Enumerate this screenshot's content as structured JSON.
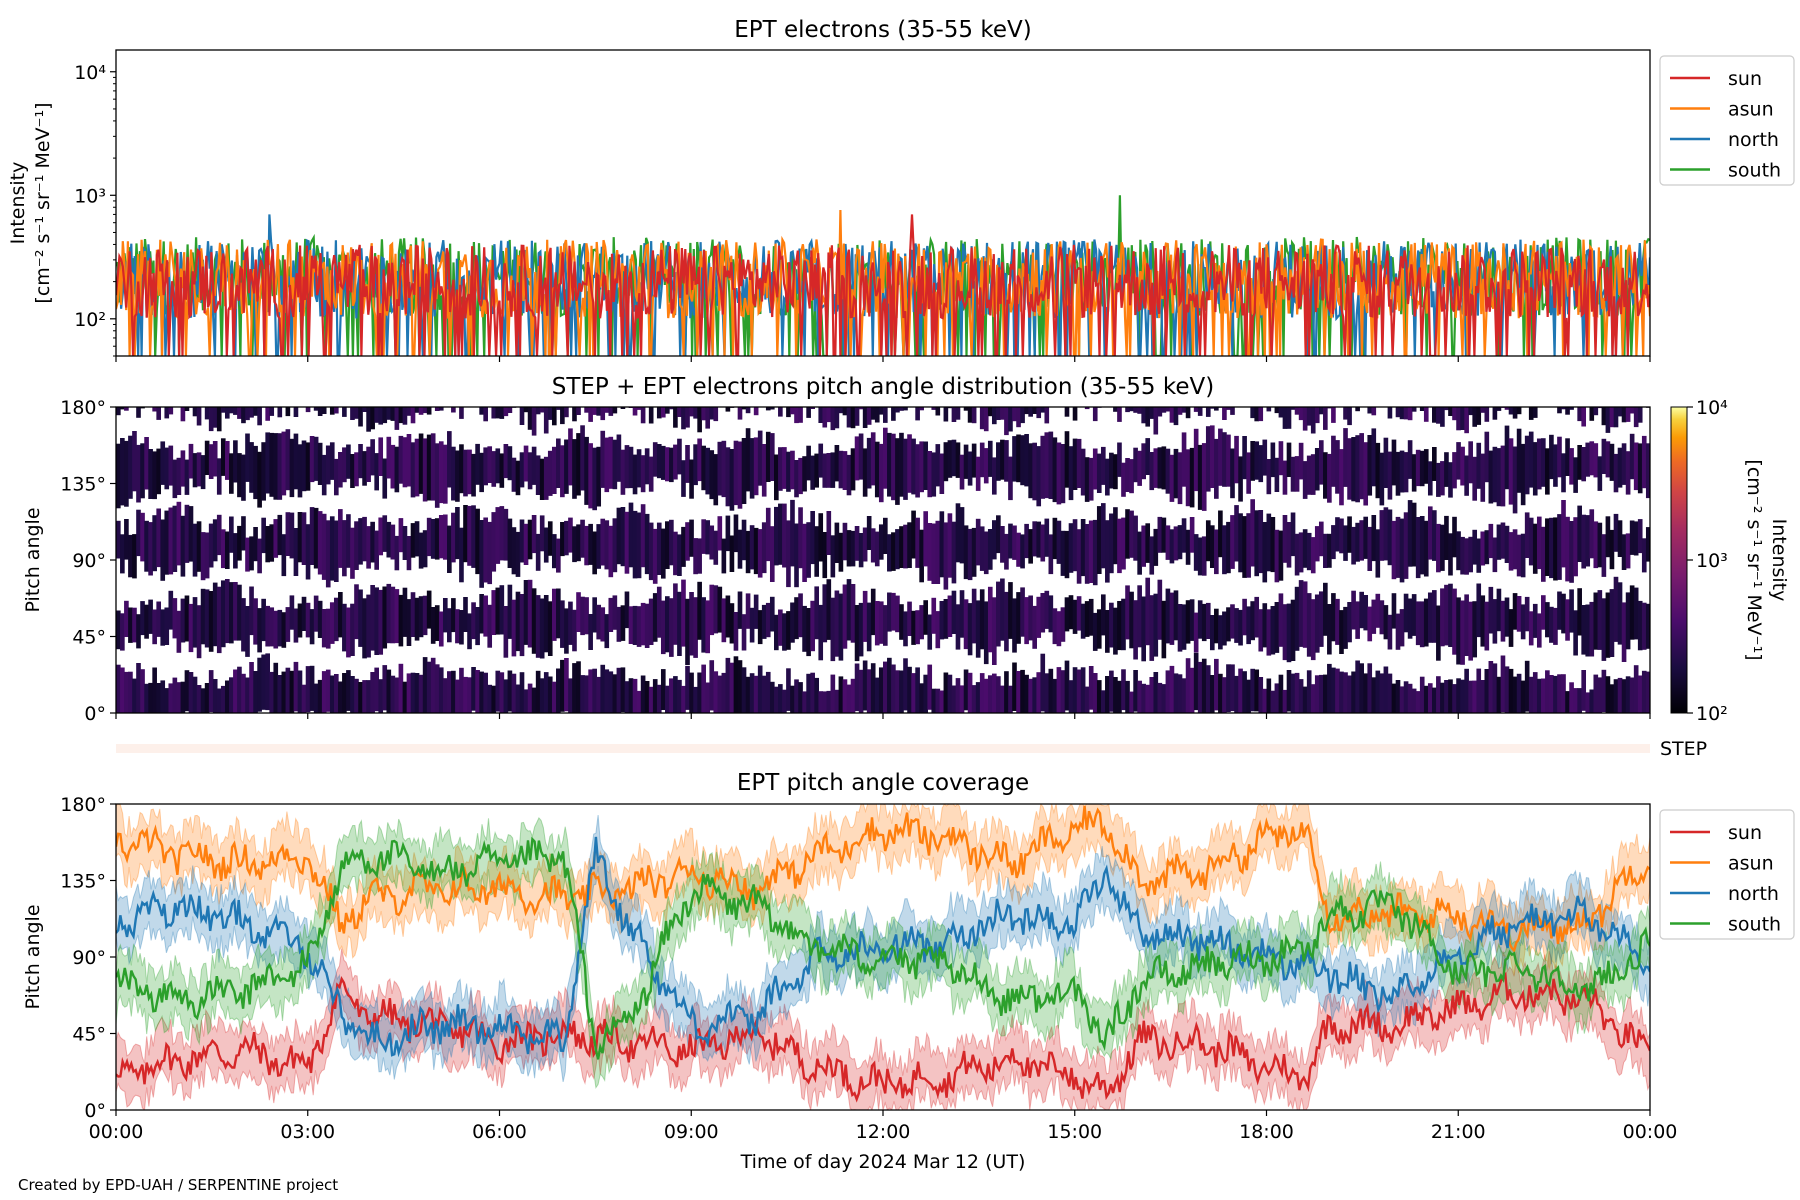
{
  "chart_data": [
    {
      "type": "line",
      "title": "EPT electrons (35-55 keV)",
      "ylabel_line1": "Intensity",
      "ylabel_line2": "[cm⁻² s⁻¹ sr⁻¹ MeV⁻¹]",
      "yscale": "log",
      "ylim": [
        50,
        15000
      ],
      "yticks": [
        {
          "value": 100,
          "label": "10²"
        },
        {
          "value": 1000,
          "label": "10³"
        },
        {
          "value": 10000,
          "label": "10⁴"
        }
      ],
      "x_hours_range": [
        0,
        24
      ],
      "legend_position": "outside-right-top",
      "series": [
        {
          "name": "south",
          "color": "#2ca02c",
          "typical": 220,
          "spread": 0.32,
          "max": 1000,
          "min": 50
        },
        {
          "name": "north",
          "color": "#1f77b4",
          "typical": 210,
          "spread": 0.32,
          "max": 700,
          "min": 50
        },
        {
          "name": "asun",
          "color": "#ff7f0e",
          "typical": 210,
          "spread": 0.32,
          "max": 760,
          "min": 50
        },
        {
          "name": "sun",
          "color": "#d62728",
          "typical": 200,
          "spread": 0.3,
          "max": 700,
          "min": 50
        }
      ],
      "legend_order": [
        "sun",
        "asun",
        "north",
        "south"
      ]
    },
    {
      "type": "heatmap",
      "title": "STEP + EPT electrons pitch angle distribution (35-55 keV)",
      "ylabel": "Pitch angle",
      "ylim": [
        0,
        180
      ],
      "yticks": [
        {
          "value": 0,
          "label": "0°"
        },
        {
          "value": 45,
          "label": "45°"
        },
        {
          "value": 90,
          "label": "90°"
        },
        {
          "value": 135,
          "label": "135°"
        },
        {
          "value": 180,
          "label": "180°"
        }
      ],
      "colorscale": "inferno",
      "zscale": "log",
      "zlim": [
        100,
        10000
      ],
      "colorbar": {
        "label_line1": "Intensity",
        "label_line2": "[cm⁻² s⁻¹ sr⁻¹ MeV⁻¹]",
        "ticks": [
          {
            "value": 100,
            "label": "10²"
          },
          {
            "value": 1000,
            "label": "10³"
          },
          {
            "value": 10000,
            "label": "10⁴"
          }
        ]
      },
      "typical_intensity": 230,
      "step_label": "STEP"
    },
    {
      "type": "line",
      "title": "EPT pitch angle coverage",
      "ylabel": "Pitch angle",
      "xlabel": "Time of day 2024 Mar 12 (UT)",
      "ylim": [
        0,
        180
      ],
      "yticks": [
        {
          "value": 0,
          "label": "0°"
        },
        {
          "value": 45,
          "label": "45°"
        },
        {
          "value": 90,
          "label": "90°"
        },
        {
          "value": 135,
          "label": "135°"
        },
        {
          "value": 180,
          "label": "180°"
        }
      ],
      "xticks": [
        {
          "hour": 0,
          "label": "00:00"
        },
        {
          "hour": 3,
          "label": "03:00"
        },
        {
          "hour": 6,
          "label": "06:00"
        },
        {
          "hour": 9,
          "label": "09:00"
        },
        {
          "hour": 12,
          "label": "12:00"
        },
        {
          "hour": 15,
          "label": "15:00"
        },
        {
          "hour": 18,
          "label": "18:00"
        },
        {
          "hour": 21,
          "label": "21:00"
        },
        {
          "hour": 24,
          "label": "00:00"
        }
      ],
      "band_halfwidth_deg": 15,
      "legend_position": "outside-right-top",
      "series": [
        {
          "name": "sun",
          "color": "#d62728",
          "x": [
            0,
            1,
            2,
            3,
            3.5,
            4,
            5,
            6,
            7,
            8,
            9,
            10,
            11,
            12,
            13,
            14,
            15,
            15.5,
            16,
            17,
            18,
            18.6,
            19,
            20,
            21,
            22,
            23,
            24
          ],
          "y": [
            20,
            30,
            35,
            25,
            70,
            55,
            50,
            40,
            45,
            40,
            35,
            45,
            25,
            15,
            20,
            30,
            20,
            10,
            40,
            40,
            25,
            20,
            50,
            50,
            60,
            70,
            65,
            30
          ]
        },
        {
          "name": "asun",
          "color": "#ff7f0e",
          "x": [
            0,
            1,
            2,
            3,
            3.5,
            4,
            5,
            6,
            7,
            8,
            9,
            10,
            11,
            12,
            13,
            14,
            15,
            15.5,
            16,
            17,
            18,
            18.6,
            19,
            20,
            21,
            22,
            23,
            24
          ],
          "y": [
            160,
            150,
            145,
            150,
            110,
            125,
            130,
            130,
            125,
            130,
            140,
            130,
            150,
            165,
            160,
            145,
            165,
            170,
            135,
            140,
            160,
            165,
            115,
            115,
            115,
            105,
            110,
            150
          ]
        },
        {
          "name": "north",
          "color": "#1f77b4",
          "x": [
            0,
            1,
            2,
            3,
            3.5,
            4,
            5,
            6,
            7,
            7.5,
            8,
            9,
            10,
            11,
            12,
            13,
            14,
            15,
            15.5,
            16,
            17,
            18,
            18.6,
            19,
            20,
            21,
            22,
            23,
            24
          ],
          "y": [
            110,
            120,
            110,
            95,
            60,
            40,
            50,
            50,
            40,
            150,
            110,
            50,
            55,
            90,
            95,
            100,
            115,
            110,
            140,
            105,
            100,
            90,
            85,
            80,
            65,
            95,
            110,
            115,
            85
          ]
        },
        {
          "name": "south",
          "color": "#2ca02c",
          "x": [
            0,
            1,
            2,
            3,
            3.5,
            4,
            5,
            6,
            7,
            7.5,
            8,
            9,
            10,
            11,
            12,
            13,
            14,
            15,
            15.5,
            16,
            17,
            18,
            18.6,
            19,
            20,
            21,
            22,
            23,
            24
          ],
          "y": [
            75,
            65,
            70,
            85,
            140,
            150,
            140,
            145,
            150,
            40,
            50,
            130,
            120,
            95,
            90,
            85,
            65,
            70,
            40,
            75,
            85,
            90,
            95,
            115,
            120,
            80,
            85,
            70,
            95
          ]
        }
      ],
      "legend_order": [
        "sun",
        "asun",
        "north",
        "south"
      ]
    }
  ],
  "credit": "Created by EPD-UAH / SERPENTINE project"
}
